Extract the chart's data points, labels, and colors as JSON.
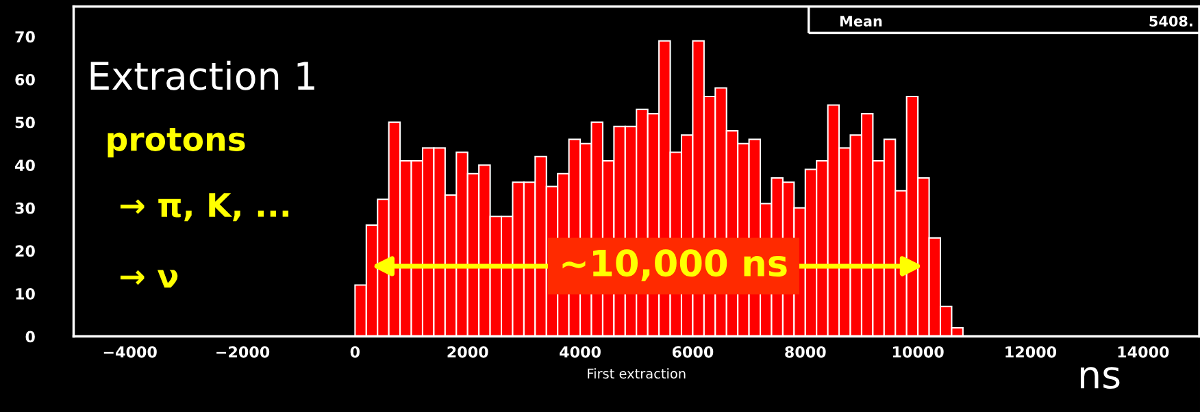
{
  "chart_data": {
    "type": "histogram",
    "xlabel": "First extraction",
    "bins": [
      0,
      200,
      400,
      600,
      800,
      1000,
      1200,
      1400,
      1600,
      1800,
      2000,
      2200,
      2400,
      2600,
      2800,
      3000,
      3200,
      3400,
      3600,
      3800,
      4000,
      4200,
      4400,
      4600,
      4800,
      5000,
      5200,
      5400,
      5600,
      5800,
      6000,
      6200,
      6400,
      6600,
      6800,
      7000,
      7200,
      7400,
      7600,
      7800,
      8000,
      8200,
      8400,
      8600,
      8800,
      9000,
      9200,
      9400,
      9600,
      9800,
      10000,
      10200,
      10400,
      10600,
      10800
    ],
    "values": [
      12,
      26,
      32,
      50,
      41,
      41,
      44,
      44,
      33,
      43,
      38,
      40,
      28,
      28,
      36,
      36,
      42,
      35,
      38,
      46,
      45,
      50,
      41,
      49,
      49,
      53,
      52,
      69,
      43,
      47,
      69,
      56,
      58,
      48,
      45,
      46,
      31,
      37,
      36,
      30,
      39,
      41,
      54,
      44,
      47,
      52,
      41,
      46,
      34,
      56,
      37,
      23,
      7,
      2
    ],
    "color": "#ff0000",
    "xlim": [
      -5000,
      15000
    ],
    "xticks": [
      -4000,
      -2000,
      0,
      2000,
      4000,
      6000,
      8000,
      10000,
      12000,
      14000
    ],
    "ylim": [
      0,
      77
    ],
    "yticks": [
      0,
      10,
      20,
      30,
      40,
      50,
      60,
      70
    ],
    "annotations": [
      "Extraction 1",
      "protons",
      "→ π, K, ...",
      "→ ν",
      "~10,000 ns",
      "Mean",
      "5408.",
      "ns"
    ]
  }
}
